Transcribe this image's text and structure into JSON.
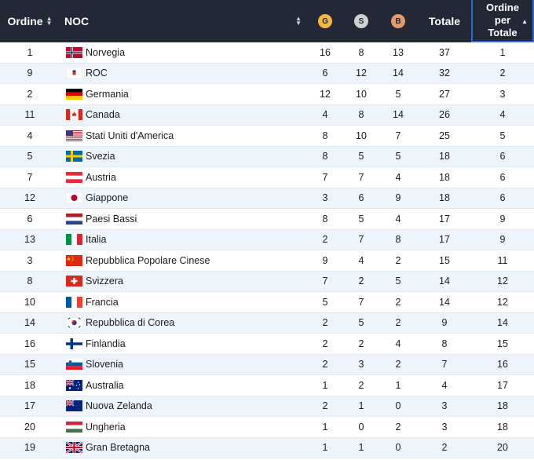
{
  "header": {
    "rank_label": "Ordine",
    "noc_label": "NOC",
    "gold_label": "G",
    "silver_label": "S",
    "bronze_label": "B",
    "total_label": "Totale",
    "order_total_label_1": "Ordine",
    "order_total_label_2": "per",
    "order_total_label_3": "Totale"
  },
  "colors": {
    "header_bg": "#222836",
    "gold": "#f4b63f",
    "silver": "#d0d0d0",
    "bronze": "#e59a6b",
    "row_alt": "#eef4fb",
    "active_sort_border": "#2d6bcf"
  },
  "rows": [
    {
      "rank": "1",
      "flag": "norway-flag",
      "name": "Norvegia",
      "gold": "16",
      "silver": "8",
      "bronze": "13",
      "total": "37",
      "order": "1"
    },
    {
      "rank": "9",
      "flag": "roc-flag",
      "name": "ROC",
      "gold": "6",
      "silver": "12",
      "bronze": "14",
      "total": "32",
      "order": "2"
    },
    {
      "rank": "2",
      "flag": "germany-flag",
      "name": "Germania",
      "gold": "12",
      "silver": "10",
      "bronze": "5",
      "total": "27",
      "order": "3"
    },
    {
      "rank": "11",
      "flag": "canada-flag",
      "name": "Canada",
      "gold": "4",
      "silver": "8",
      "bronze": "14",
      "total": "26",
      "order": "4"
    },
    {
      "rank": "4",
      "flag": "usa-flag",
      "name": "Stati Uniti d'America",
      "gold": "8",
      "silver": "10",
      "bronze": "7",
      "total": "25",
      "order": "5"
    },
    {
      "rank": "5",
      "flag": "sweden-flag",
      "name": "Svezia",
      "gold": "8",
      "silver": "5",
      "bronze": "5",
      "total": "18",
      "order": "6"
    },
    {
      "rank": "7",
      "flag": "austria-flag",
      "name": "Austria",
      "gold": "7",
      "silver": "7",
      "bronze": "4",
      "total": "18",
      "order": "6"
    },
    {
      "rank": "12",
      "flag": "japan-flag",
      "name": "Giappone",
      "gold": "3",
      "silver": "6",
      "bronze": "9",
      "total": "18",
      "order": "6"
    },
    {
      "rank": "6",
      "flag": "netherlands-flag",
      "name": "Paesi Bassi",
      "gold": "8",
      "silver": "5",
      "bronze": "4",
      "total": "17",
      "order": "9"
    },
    {
      "rank": "13",
      "flag": "italy-flag",
      "name": "Italia",
      "gold": "2",
      "silver": "7",
      "bronze": "8",
      "total": "17",
      "order": "9"
    },
    {
      "rank": "3",
      "flag": "china-flag",
      "name": "Repubblica Popolare Cinese",
      "gold": "9",
      "silver": "4",
      "bronze": "2",
      "total": "15",
      "order": "11"
    },
    {
      "rank": "8",
      "flag": "switzerland-flag",
      "name": "Svizzera",
      "gold": "7",
      "silver": "2",
      "bronze": "5",
      "total": "14",
      "order": "12"
    },
    {
      "rank": "10",
      "flag": "france-flag",
      "name": "Francia",
      "gold": "5",
      "silver": "7",
      "bronze": "2",
      "total": "14",
      "order": "12"
    },
    {
      "rank": "14",
      "flag": "korea-flag",
      "name": "Repubblica di Corea",
      "gold": "2",
      "silver": "5",
      "bronze": "2",
      "total": "9",
      "order": "14"
    },
    {
      "rank": "16",
      "flag": "finland-flag",
      "name": "Finlandia",
      "gold": "2",
      "silver": "2",
      "bronze": "4",
      "total": "8",
      "order": "15"
    },
    {
      "rank": "15",
      "flag": "slovenia-flag",
      "name": "Slovenia",
      "gold": "2",
      "silver": "3",
      "bronze": "2",
      "total": "7",
      "order": "16"
    },
    {
      "rank": "18",
      "flag": "australia-flag",
      "name": "Australia",
      "gold": "1",
      "silver": "2",
      "bronze": "1",
      "total": "4",
      "order": "17"
    },
    {
      "rank": "17",
      "flag": "new-zealand-flag",
      "name": "Nuova Zelanda",
      "gold": "2",
      "silver": "1",
      "bronze": "0",
      "total": "3",
      "order": "18"
    },
    {
      "rank": "20",
      "flag": "hungary-flag",
      "name": "Ungheria",
      "gold": "1",
      "silver": "0",
      "bronze": "2",
      "total": "3",
      "order": "18"
    },
    {
      "rank": "19",
      "flag": "great-britain-flag",
      "name": "Gran Bretagna",
      "gold": "1",
      "silver": "1",
      "bronze": "0",
      "total": "2",
      "order": "20"
    }
  ]
}
